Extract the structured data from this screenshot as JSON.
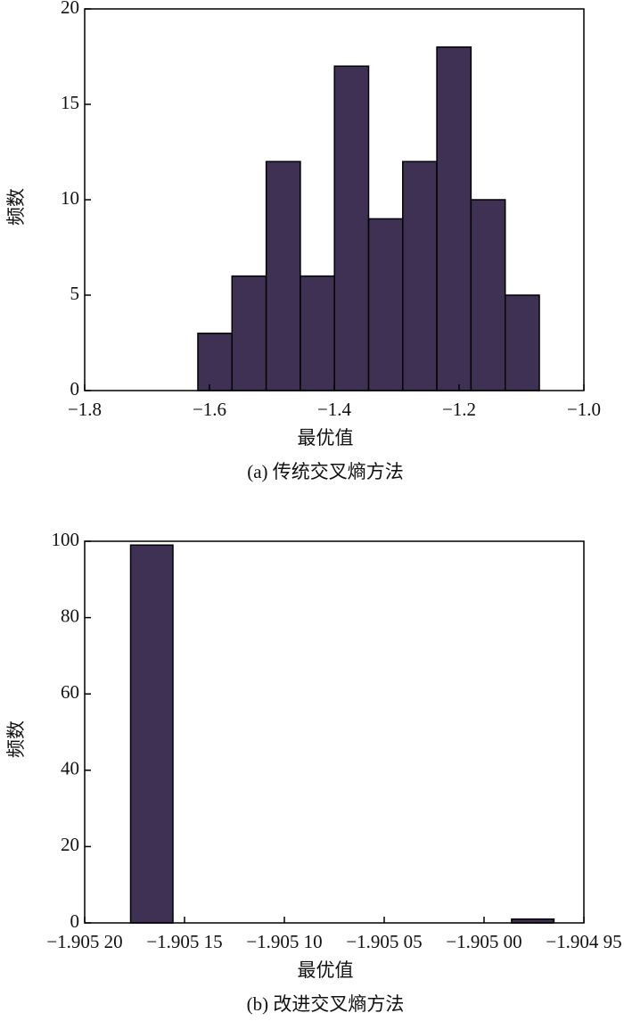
{
  "chart_data": [
    {
      "type": "histogram",
      "caption": "(a) 传统交叉熵方法",
      "xlabel": "最优值",
      "ylabel": "频数",
      "bins": [
        -1.6186,
        -1.5639,
        -1.5091,
        -1.4544,
        -1.3997,
        -1.345,
        -1.2903,
        -1.2356,
        -1.1809,
        -1.1261,
        -1.0714
      ],
      "values": [
        3,
        6,
        12,
        6,
        17,
        9,
        12,
        18,
        10,
        5
      ],
      "color": "#3f3153",
      "xlim": [
        -1.8,
        -1.0
      ],
      "xticks": [
        {
          "value": -1.8,
          "label": "−1.8"
        },
        {
          "value": -1.6,
          "label": "−1.6"
        },
        {
          "value": -1.4,
          "label": "−1.4"
        },
        {
          "value": -1.2,
          "label": "−1.2"
        },
        {
          "value": -1.0,
          "label": "−1.0"
        }
      ],
      "ylim": [
        0,
        20
      ],
      "yticks": [
        0,
        5,
        10,
        15,
        20
      ]
    },
    {
      "type": "histogram",
      "caption": "(b) 改进交叉熵方法",
      "xlabel": "最优值",
      "ylabel": "频数",
      "bins": [
        -1.905177,
        -1.9051558,
        -1.9051346,
        -1.9051134,
        -1.9050922,
        -1.905071,
        -1.9050498,
        -1.9050286,
        -1.9050074,
        -1.9049862,
        -1.904965
      ],
      "values": [
        99,
        0,
        0,
        0,
        0,
        0,
        0,
        0,
        0,
        1
      ],
      "color": "#3f3153",
      "xlim": [
        -1.9052,
        -1.90495
      ],
      "xticks": [
        {
          "value": -1.9052,
          "label": "−1.905 20"
        },
        {
          "value": -1.90515,
          "label": "−1.905 15"
        },
        {
          "value": -1.9051,
          "label": "−1.905 10"
        },
        {
          "value": -1.90505,
          "label": "−1.905 05"
        },
        {
          "value": -1.905,
          "label": "−1.905 00"
        },
        {
          "value": -1.90495,
          "label": "−1.904 95"
        }
      ],
      "ylim": [
        0,
        100
      ],
      "yticks": [
        0,
        20,
        40,
        60,
        80,
        100
      ]
    }
  ]
}
